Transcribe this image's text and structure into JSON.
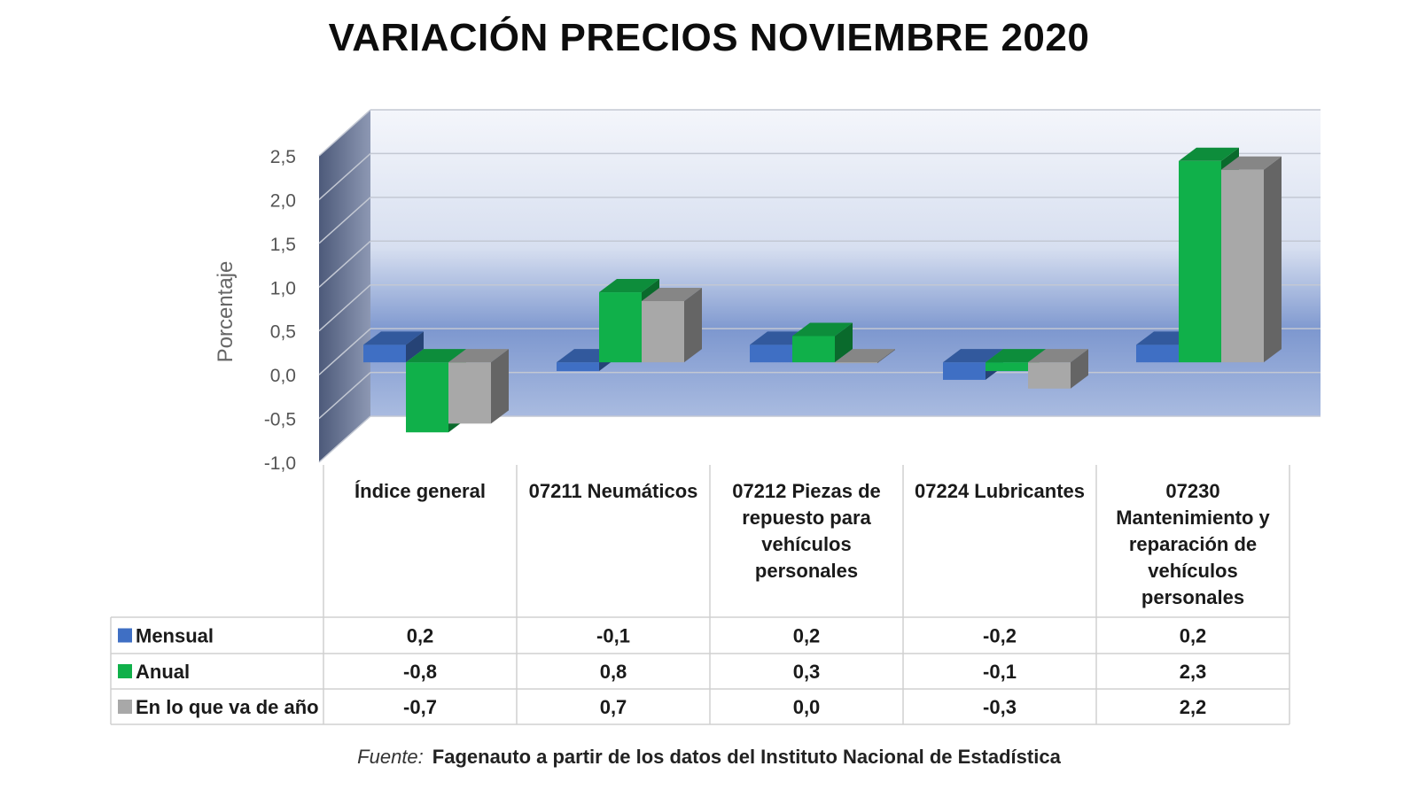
{
  "colors": {
    "mensual": "#3f6fc4",
    "anual": "#10b04a",
    "ytd": "#a8a8a8"
  },
  "source": {
    "label": "Fuente:",
    "text": "Fagenauto a partir de los datos del Instituto Nacional de Estadística"
  },
  "chart_data": {
    "type": "bar",
    "title": "VARIACIÓN PRECIOS NOVIEMBRE 2020",
    "ylabel": "Porcentaje",
    "ylim": [
      -1.0,
      2.5
    ],
    "yticks": [
      "2,5",
      "2,0",
      "1,5",
      "1,0",
      "0,5",
      "0,0",
      "-0,5",
      "-1,0"
    ],
    "grid": true,
    "legend": "table-left",
    "categories": [
      "Índice general",
      "07211 Neumáticos",
      "07212 Piezas de repuesto para vehículos personales",
      "07224 Lubricantes",
      "07230 Mantenimiento y reparación de vehículos personales"
    ],
    "category_lines": [
      [
        "Índice general"
      ],
      [
        "07211 Neumáticos"
      ],
      [
        "07212 Piezas de",
        "repuesto para",
        "vehículos",
        "personales"
      ],
      [
        "07224 Lubricantes"
      ],
      [
        "07230",
        "Mantenimiento y",
        "reparación de",
        "vehículos",
        "personales"
      ]
    ],
    "series": [
      {
        "name": "Mensual",
        "key": "mensual",
        "values": [
          0.2,
          -0.1,
          0.2,
          -0.2,
          0.2
        ],
        "labels": [
          "0,2",
          "-0,1",
          "0,2",
          "-0,2",
          "0,2"
        ]
      },
      {
        "name": "Anual",
        "key": "anual",
        "values": [
          -0.8,
          0.8,
          0.3,
          -0.1,
          2.3
        ],
        "labels": [
          "-0,8",
          "0,8",
          "0,3",
          "-0,1",
          "2,3"
        ]
      },
      {
        "name": "En lo que va de año",
        "key": "ytd",
        "values": [
          -0.7,
          0.7,
          0.0,
          -0.3,
          2.2
        ],
        "labels": [
          "-0,7",
          "0,7",
          "0,0",
          "-0,3",
          "2,2"
        ]
      }
    ]
  }
}
